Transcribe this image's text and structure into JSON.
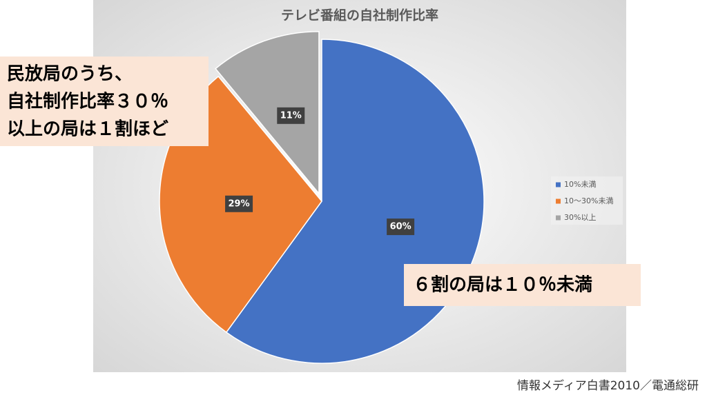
{
  "chart_data": {
    "type": "pie",
    "title": "テレビ番組の自社制作比率",
    "categories": [
      "10%未満",
      "10〜30%未満",
      "30%以上"
    ],
    "values": [
      60,
      29,
      11
    ],
    "value_labels": [
      "60%",
      "29%",
      "11%"
    ],
    "colors": [
      "#4472c4",
      "#ed7d31",
      "#a5a5a5"
    ],
    "exploded": [
      false,
      false,
      true
    ],
    "legend": "right"
  },
  "callouts": [
    {
      "lines": [
        "民放局のうち、",
        "自社制作比率３０％",
        "以上の局は１割ほど"
      ]
    },
    {
      "lines": [
        "６割の局は１０％未満"
      ]
    }
  ],
  "source": "情報メディア白書2010／電通総研"
}
